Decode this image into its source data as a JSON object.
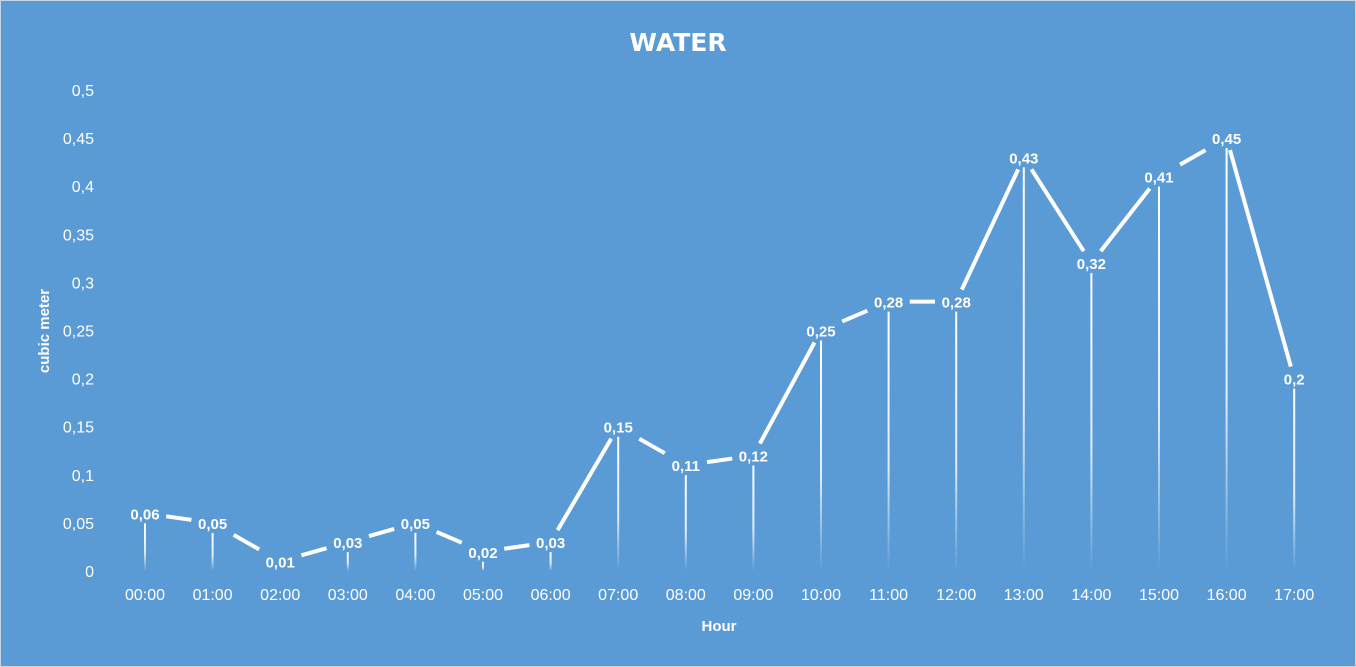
{
  "chart_data": {
    "type": "line",
    "title": "WATER",
    "xlabel": "Hour",
    "ylabel": "cubic meter",
    "categories": [
      "00:00",
      "01:00",
      "02:00",
      "03:00",
      "04:00",
      "05:00",
      "06:00",
      "07:00",
      "08:00",
      "09:00",
      "10:00",
      "11:00",
      "12:00",
      "13:00",
      "14:00",
      "15:00",
      "16:00",
      "17:00"
    ],
    "values": [
      0.06,
      0.05,
      0.01,
      0.03,
      0.05,
      0.02,
      0.03,
      0.15,
      0.11,
      0.12,
      0.25,
      0.28,
      0.28,
      0.43,
      0.32,
      0.41,
      0.45,
      0.2
    ],
    "data_labels": [
      "0,06",
      "0,05",
      "0,01",
      "0,03",
      "0,05",
      "0,02",
      "0,03",
      "0,15",
      "0,11",
      "0,12",
      "0,25",
      "0,28",
      "0,28",
      "0,43",
      "0,32",
      "0,41",
      "0,45",
      "0,2"
    ],
    "yticks": [
      0,
      0.05,
      0.1,
      0.15,
      0.2,
      0.25,
      0.3,
      0.35,
      0.4,
      0.45,
      0.5
    ],
    "ytick_labels": [
      "0",
      "0,05",
      "0,1",
      "0,15",
      "0,2",
      "0,25",
      "0,3",
      "0,35",
      "0,4",
      "0,45",
      "0,5"
    ],
    "ylim": [
      0,
      0.5
    ],
    "grid": false,
    "legend": "none",
    "drop_lines": true,
    "colors": {
      "background": "#5b9bd5",
      "line": "#ffffff",
      "text": "#ffffff"
    }
  }
}
